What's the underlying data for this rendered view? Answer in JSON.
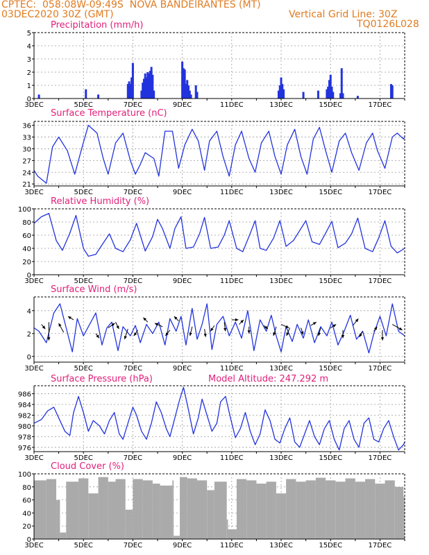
{
  "header": {
    "line1": "CPTEC:  058:08W-09:49S  NOVA BANDEIRANTES (MT)",
    "line2_left": "03DEC2020 30Z (GMT)",
    "line2_right": "Vertical Grid Line: 30Z",
    "line3_right": "TQ0126L028"
  },
  "colors": {
    "header": "#e07b20",
    "title": "#e0207b",
    "line": "#2233dd",
    "cloud": "#aaaaaa"
  },
  "x_labels": [
    "3DEC",
    "5DEC",
    "7DEC",
    "9DEC",
    "11DEC",
    "13DEC",
    "15DEC",
    "17DEC"
  ],
  "chart_data": [
    {
      "type": "bar",
      "title": "Precipitation (mm/h)",
      "ylim": [
        0,
        5
      ],
      "yticks": [
        0,
        1,
        2,
        3,
        4,
        5
      ],
      "x": [
        3.2,
        5.1,
        5.6,
        6.8,
        6.85,
        6.9,
        6.95,
        7.0,
        7.35,
        7.4,
        7.45,
        7.5,
        7.55,
        7.6,
        7.65,
        7.7,
        7.75,
        7.8,
        7.85,
        9.0,
        9.05,
        9.1,
        9.15,
        9.2,
        9.25,
        9.3,
        9.35,
        9.55,
        9.6,
        12.9,
        12.95,
        13.0,
        13.05,
        13.1,
        13.9,
        14.5,
        14.85,
        14.9,
        14.95,
        15.0,
        15.05,
        15.1,
        15.4,
        15.45,
        15.5,
        16.1,
        17.45,
        17.5
      ],
      "values": [
        0.3,
        0.7,
        0.3,
        1.1,
        1.3,
        1.1,
        1.6,
        2.7,
        0.6,
        1.2,
        1.5,
        1.9,
        1.6,
        2.0,
        1.9,
        2.1,
        2.4,
        1.8,
        0.6,
        2.8,
        2.3,
        2.2,
        1.1,
        1.4,
        1.0,
        0.6,
        0.3,
        1.0,
        0.5,
        0.6,
        1.0,
        1.6,
        1.1,
        0.7,
        0.5,
        0.6,
        0.7,
        0.9,
        1.4,
        1.8,
        0.9,
        0.5,
        0.4,
        2.3,
        0.4,
        0.2,
        1.1,
        1.0
      ]
    },
    {
      "type": "line",
      "title": "Surface Temperature (nC)",
      "ylim": [
        20.5,
        37
      ],
      "yticks": [
        21,
        24,
        27,
        30,
        33,
        36
      ],
      "x": [
        3.0,
        3.15,
        3.5,
        3.75,
        4.0,
        4.35,
        4.65,
        4.95,
        5.2,
        5.55,
        5.8,
        6.0,
        6.3,
        6.6,
        6.9,
        7.1,
        7.3,
        7.5,
        7.85,
        8.05,
        8.3,
        8.6,
        8.85,
        9.1,
        9.4,
        9.65,
        9.9,
        10.1,
        10.4,
        10.65,
        10.9,
        11.15,
        11.4,
        11.7,
        11.95,
        12.2,
        12.5,
        12.75,
        13.0,
        13.25,
        13.55,
        13.8,
        14.05,
        14.3,
        14.55,
        14.8,
        15.05,
        15.35,
        15.6,
        15.85,
        16.15,
        16.45,
        16.7,
        16.9,
        17.2,
        17.5,
        17.7,
        17.95,
        18.0
      ],
      "values": [
        24.5,
        23.0,
        21.2,
        30.5,
        33.0,
        29.5,
        23.5,
        30.5,
        36.0,
        34.0,
        27.5,
        23.5,
        31.5,
        34.0,
        27.0,
        23.5,
        26.0,
        29.0,
        27.5,
        23.0,
        34.5,
        34.5,
        25.0,
        31.0,
        35.0,
        32.0,
        24.5,
        32.0,
        34.5,
        28.0,
        23.0,
        31.0,
        34.5,
        27.5,
        24.0,
        31.5,
        34.5,
        28.0,
        23.5,
        31.0,
        35.0,
        28.0,
        23.5,
        32.5,
        35.5,
        29.5,
        24.0,
        32.0,
        34.0,
        29.0,
        24.5,
        31.5,
        34.0,
        29.5,
        25.0,
        33.0,
        34.0,
        32.5,
        33.0
      ]
    },
    {
      "type": "line",
      "title": "Relative Humidity (%)",
      "ylim": [
        0,
        100
      ],
      "yticks": [
        0,
        20,
        40,
        60,
        80,
        100
      ],
      "x": [
        3.0,
        3.3,
        3.6,
        3.9,
        4.15,
        4.45,
        4.7,
        5.0,
        5.2,
        5.5,
        5.8,
        6.05,
        6.3,
        6.6,
        6.9,
        7.15,
        7.3,
        7.5,
        7.8,
        8.0,
        8.2,
        8.5,
        8.7,
        8.95,
        9.15,
        9.45,
        9.7,
        9.9,
        10.15,
        10.45,
        10.7,
        10.9,
        11.2,
        11.45,
        11.7,
        11.95,
        12.15,
        12.4,
        12.7,
        12.95,
        13.2,
        13.5,
        13.75,
        14.0,
        14.25,
        14.55,
        14.8,
        15.05,
        15.3,
        15.6,
        15.85,
        16.1,
        16.4,
        16.7,
        16.95,
        17.2,
        17.45,
        17.7,
        18.0
      ],
      "values": [
        78,
        88,
        93,
        52,
        37,
        63,
        90,
        40,
        28,
        31,
        48,
        62,
        40,
        35,
        53,
        78,
        60,
        36,
        58,
        84,
        70,
        40,
        70,
        88,
        40,
        42,
        62,
        87,
        40,
        42,
        60,
        82,
        40,
        35,
        58,
        82,
        40,
        37,
        56,
        82,
        43,
        52,
        67,
        82,
        50,
        46,
        63,
        81,
        41,
        48,
        62,
        86,
        40,
        35,
        56,
        82,
        43,
        33,
        40
      ]
    },
    {
      "type": "line",
      "title": "Surface Wind (m/s)",
      "ylim": [
        -0.5,
        5.2
      ],
      "yticks": [
        0,
        2,
        4
      ],
      "x": [
        3.0,
        3.2,
        3.5,
        3.8,
        4.05,
        4.3,
        4.55,
        4.75,
        5.0,
        5.25,
        5.5,
        5.75,
        5.95,
        6.15,
        6.4,
        6.6,
        6.9,
        7.1,
        7.3,
        7.55,
        7.8,
        8.05,
        8.3,
        8.5,
        8.75,
        8.95,
        9.15,
        9.4,
        9.6,
        9.8,
        10.0,
        10.2,
        10.4,
        10.65,
        10.9,
        11.15,
        11.4,
        11.65,
        11.9,
        12.15,
        12.4,
        12.6,
        12.8,
        13.0,
        13.2,
        13.45,
        13.65,
        13.9,
        14.1,
        14.35,
        14.6,
        14.85,
        15.05,
        15.3,
        15.55,
        15.8,
        16.05,
        16.3,
        16.55,
        16.75,
        17.0,
        17.25,
        17.5,
        17.75,
        18.0
      ],
      "values": [
        2.5,
        2.2,
        1.2,
        3.8,
        4.6,
        2.5,
        0.4,
        3.3,
        1.8,
        2.8,
        3.8,
        1.0,
        2.5,
        3.0,
        0.5,
        2.6,
        1.8,
        2.7,
        1.2,
        2.8,
        2.0,
        3.0,
        1.0,
        3.3,
        2.2,
        3.5,
        1.0,
        4.2,
        1.5,
        2.8,
        4.6,
        0.6,
        2.8,
        3.5,
        1.8,
        3.0,
        1.6,
        4.0,
        0.5,
        3.2,
        2.2,
        3.6,
        1.8,
        0.4,
        2.6,
        1.3,
        2.8,
        1.6,
        3.2,
        1.2,
        2.6,
        1.8,
        3.0,
        1.0,
        2.2,
        3.6,
        1.5,
        2.2,
        0.3,
        2.0,
        3.5,
        1.8,
        4.6,
        2.2,
        1.8
      ],
      "arrows": [
        [
          3.3,
          2.8,
          0.35,
          -0.4
        ],
        [
          3.6,
          3.0,
          0.0,
          -1.6
        ],
        [
          4.2,
          2.1,
          -0.45,
          0.8
        ],
        [
          4.6,
          3.2,
          -0.5,
          0.3
        ],
        [
          5.5,
          2.0,
          0.3,
          -0.4
        ],
        [
          6.0,
          2.5,
          0.6,
          0.4
        ],
        [
          6.3,
          3.0,
          0.3,
          -0.6
        ],
        [
          6.8,
          2.4,
          -0.3,
          -0.9
        ],
        [
          7.2,
          2.3,
          -0.35,
          -0.5
        ],
        [
          7.6,
          3.0,
          -0.4,
          0.4
        ],
        [
          8.2,
          2.6,
          -0.7,
          0.3
        ],
        [
          8.5,
          2.3,
          -0.4,
          -0.5
        ],
        [
          8.85,
          3.1,
          -0.4,
          0.4
        ],
        [
          9.4,
          2.6,
          -0.2,
          -0.8
        ],
        [
          9.9,
          2.4,
          0.1,
          -0.7
        ],
        [
          10.3,
          2.7,
          -0.35,
          -0.5
        ],
        [
          10.7,
          3.0,
          0.1,
          -0.8
        ],
        [
          11.0,
          3.2,
          0.6,
          0.0
        ],
        [
          11.3,
          2.8,
          0.4,
          0.4
        ],
        [
          11.7,
          2.6,
          0.0,
          -0.6
        ],
        [
          12.3,
          2.7,
          0.35,
          -0.3
        ],
        [
          12.8,
          2.6,
          -0.25,
          -0.8
        ],
        [
          13.0,
          2.8,
          0.7,
          -0.3
        ],
        [
          13.35,
          2.5,
          -0.3,
          -0.7
        ],
        [
          13.8,
          2.5,
          0.2,
          -0.6
        ],
        [
          14.2,
          2.7,
          0.5,
          0.3
        ],
        [
          14.6,
          2.5,
          -0.2,
          -0.7
        ],
        [
          15.0,
          2.5,
          0.5,
          0.3
        ],
        [
          15.5,
          2.3,
          0.0,
          -0.7
        ],
        [
          15.9,
          2.7,
          0.5,
          0.6
        ],
        [
          16.3,
          2.2,
          -0.3,
          -0.5
        ],
        [
          16.75,
          2.2,
          0.3,
          0.4
        ],
        [
          17.1,
          2.3,
          0.0,
          -0.9
        ],
        [
          17.5,
          2.8,
          0.9,
          -0.5
        ]
      ]
    },
    {
      "type": "line",
      "title": "Surface Pressure (hPa)",
      "subtitle": "Model Altitude: 247.292 m",
      "ylim": [
        975.2,
        987.5
      ],
      "yticks": [
        976,
        978,
        980,
        982,
        984,
        986
      ],
      "x": [
        3.0,
        3.3,
        3.55,
        3.8,
        4.0,
        4.25,
        4.45,
        4.6,
        4.8,
        5.0,
        5.2,
        5.4,
        5.65,
        5.85,
        6.05,
        6.25,
        6.45,
        6.6,
        6.8,
        7.0,
        7.15,
        7.35,
        7.55,
        7.75,
        7.95,
        8.15,
        8.35,
        8.5,
        8.7,
        8.9,
        9.05,
        9.25,
        9.45,
        9.65,
        9.8,
        10.0,
        10.2,
        10.4,
        10.55,
        10.75,
        10.95,
        11.15,
        11.35,
        11.55,
        11.75,
        11.95,
        12.15,
        12.35,
        12.55,
        12.75,
        12.95,
        13.15,
        13.35,
        13.55,
        13.75,
        13.95,
        14.15,
        14.35,
        14.55,
        14.75,
        14.95,
        15.15,
        15.35,
        15.55,
        15.75,
        15.95,
        16.15,
        16.35,
        16.55,
        16.75,
        16.95,
        17.15,
        17.35,
        17.55,
        17.75,
        17.95,
        18.0
      ],
      "values": [
        980.5,
        981.2,
        982.8,
        983.5,
        981.5,
        979.0,
        978.2,
        982.5,
        985.5,
        982.5,
        979.0,
        981.0,
        980.0,
        978.5,
        981.0,
        982.5,
        978.5,
        977.5,
        980.5,
        983.5,
        982.0,
        979.0,
        977.5,
        980.5,
        984.5,
        982.5,
        979.5,
        978.0,
        981.5,
        985.0,
        987.2,
        983.0,
        978.5,
        981.5,
        985.0,
        982.0,
        979.0,
        980.5,
        984.5,
        985.5,
        981.5,
        977.8,
        979.5,
        982.5,
        979.0,
        976.5,
        978.5,
        983.0,
        981.0,
        977.5,
        976.8,
        979.5,
        981.5,
        977.0,
        976.0,
        978.5,
        981.0,
        978.0,
        976.5,
        979.5,
        981.0,
        977.5,
        975.5,
        979.5,
        981.0,
        977.5,
        976.0,
        980.5,
        981.5,
        977.5,
        977.0,
        979.5,
        981.0,
        978.0,
        975.5,
        976.5,
        977.0
      ]
    },
    {
      "type": "bar",
      "title": "Cloud Cover (%)",
      "ylim": [
        0,
        100
      ],
      "yticks": [
        0,
        20,
        40,
        60,
        80,
        100
      ],
      "x": [
        3.0,
        3.5,
        3.9,
        4.05,
        4.3,
        4.8,
        5.2,
        5.6,
        6.0,
        6.3,
        6.7,
        7.0,
        7.4,
        7.8,
        8.1,
        8.6,
        8.65,
        8.9,
        9.2,
        9.6,
        10.0,
        10.3,
        10.8,
        10.85,
        11.2,
        11.6,
        12.0,
        12.4,
        12.8,
        13.2,
        13.6,
        14.0,
        14.4,
        14.8,
        15.2,
        15.6,
        16.0,
        16.4,
        16.8,
        17.2,
        17.6,
        17.95
      ],
      "values": [
        90,
        92,
        60,
        10,
        88,
        93,
        70,
        95,
        88,
        92,
        45,
        92,
        90,
        85,
        82,
        90,
        5,
        95,
        93,
        90,
        75,
        88,
        30,
        15,
        92,
        90,
        85,
        88,
        70,
        92,
        88,
        90,
        94,
        90,
        88,
        93,
        88,
        92,
        85,
        90,
        80,
        65
      ]
    }
  ]
}
